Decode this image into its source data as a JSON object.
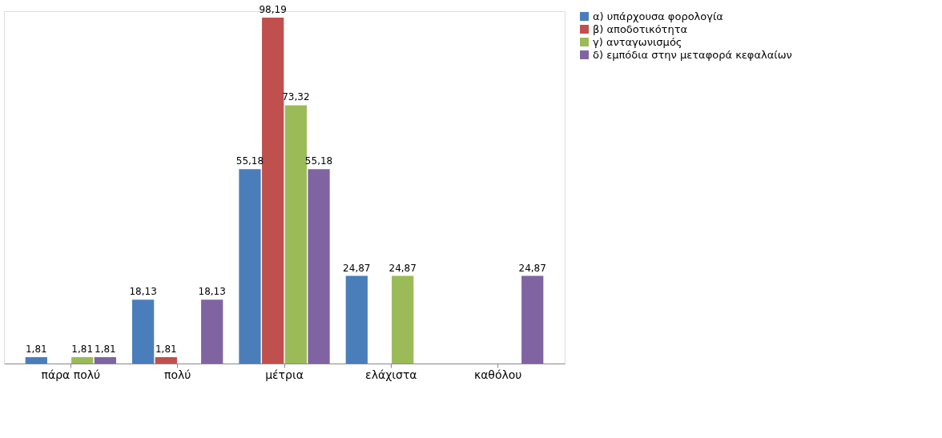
{
  "chart_data": {
    "type": "bar",
    "categories": [
      "πάρα πολύ",
      "πολύ",
      "μέτρια",
      "ελάχιστα",
      "καθόλου"
    ],
    "series": [
      {
        "name": "α) υπάρχουσα φορολογία",
        "color": "#4a7ebb",
        "values": [
          1.81,
          18.13,
          55.18,
          24.87,
          null
        ],
        "value_labels": [
          "1,81",
          "18,13",
          "55,18",
          "24,87",
          null
        ]
      },
      {
        "name": "β) αποδοτικότητα",
        "color": "#c0504d",
        "values": [
          null,
          1.81,
          98.19,
          null,
          null
        ],
        "value_labels": [
          null,
          "1,81",
          "98,19",
          null,
          null
        ]
      },
      {
        "name": "γ) ανταγωνισμός",
        "color": "#9bbb59",
        "values": [
          1.81,
          null,
          73.32,
          24.87,
          null
        ],
        "value_labels": [
          "1,81",
          null,
          "73,32",
          "24,87",
          null
        ]
      },
      {
        "name": "δ) εμπόδια στην μεταφορά κεφαλαίων",
        "color": "#8064a2",
        "values": [
          1.81,
          18.13,
          55.18,
          null,
          24.87
        ],
        "value_labels": [
          "1,81",
          "18,13",
          "55,18",
          null,
          "24,87"
        ]
      }
    ],
    "legend": "right",
    "grid": false
  }
}
